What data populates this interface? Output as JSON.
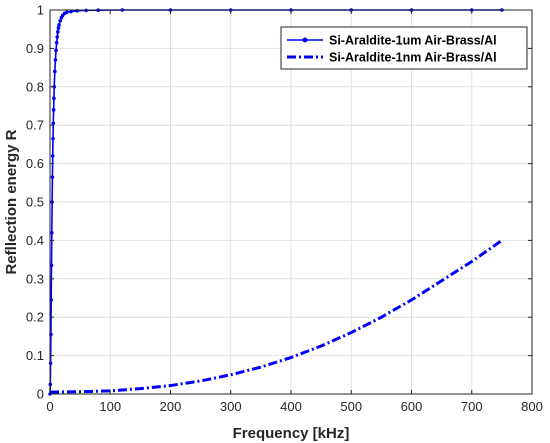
{
  "chart_data": {
    "type": "line",
    "xlabel": "Frequency [kHz]",
    "ylabel": "Refllection energy R",
    "xlim": [
      0,
      800
    ],
    "ylim": [
      0,
      1
    ],
    "xticks": [
      0,
      100,
      200,
      300,
      400,
      500,
      600,
      700,
      800
    ],
    "yticks": [
      0,
      0.1,
      0.2,
      0.3,
      0.4,
      0.5,
      0.6,
      0.7,
      0.8,
      0.9,
      1
    ],
    "grid": true,
    "legend": "top-right",
    "colors": {
      "series": "#0000ff",
      "axis": "#262626",
      "grid": "#e0e0e0"
    },
    "series": [
      {
        "name": "Si-Araldite-1um Air-Brass/Al",
        "style": "solid-with-point-markers",
        "x": [
          0,
          0.5,
          1,
          1.5,
          2,
          2.5,
          3,
          3.5,
          4,
          4.5,
          5,
          5.5,
          6,
          6.5,
          7,
          8,
          9,
          10,
          11,
          12,
          13,
          14,
          15,
          17,
          19,
          21,
          24,
          28,
          35,
          45,
          60,
          80,
          120,
          200,
          300,
          400,
          500,
          600,
          700,
          750
        ],
        "y": [
          0,
          0.025,
          0.08,
          0.155,
          0.245,
          0.335,
          0.42,
          0.5,
          0.565,
          0.62,
          0.665,
          0.705,
          0.74,
          0.77,
          0.8,
          0.84,
          0.87,
          0.895,
          0.915,
          0.93,
          0.943,
          0.953,
          0.961,
          0.972,
          0.98,
          0.986,
          0.991,
          0.994,
          0.996,
          0.998,
          0.999,
          0.9995,
          1,
          1,
          1,
          1,
          1,
          1,
          1,
          1
        ]
      },
      {
        "name": "Si-Araldite-1nm Air-Brass/Al",
        "style": "dash-dot",
        "x": [
          0,
          50,
          100,
          150,
          200,
          250,
          300,
          350,
          400,
          450,
          500,
          550,
          600,
          650,
          700,
          750
        ],
        "y": [
          0.005,
          0.006,
          0.008,
          0.014,
          0.022,
          0.034,
          0.05,
          0.07,
          0.095,
          0.125,
          0.16,
          0.2,
          0.245,
          0.295,
          0.345,
          0.4
        ]
      }
    ]
  }
}
